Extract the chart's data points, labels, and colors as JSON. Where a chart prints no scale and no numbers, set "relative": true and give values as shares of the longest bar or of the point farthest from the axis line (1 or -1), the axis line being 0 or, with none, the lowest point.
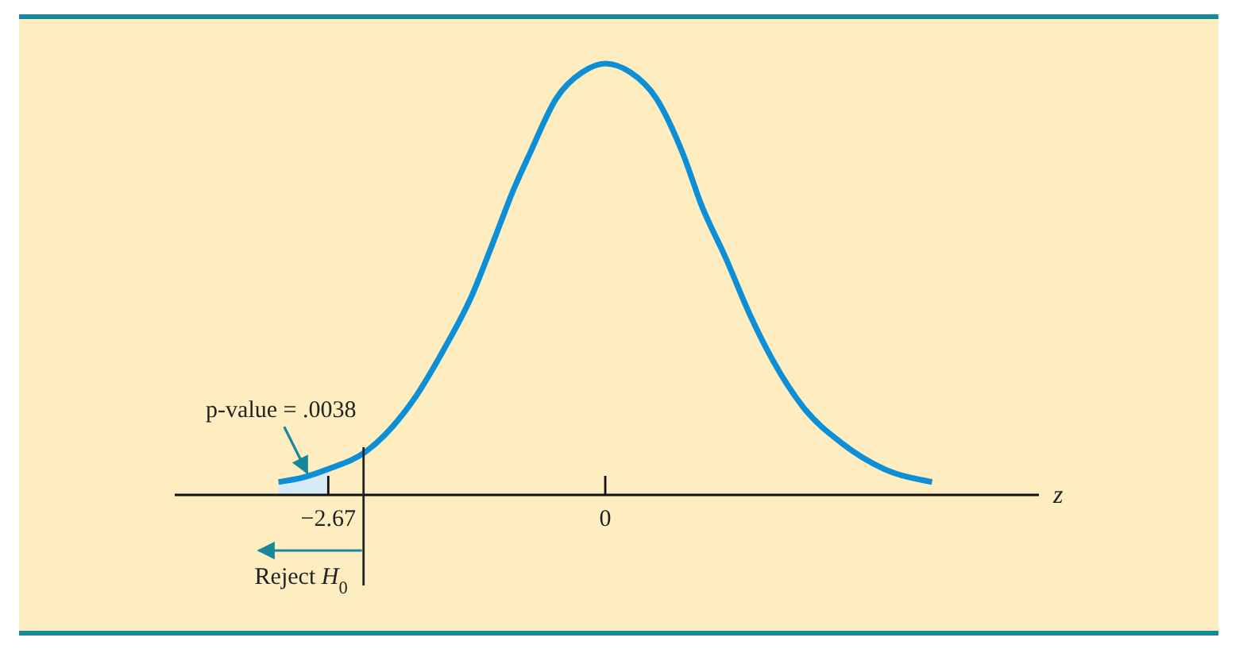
{
  "chart_data": {
    "type": "line",
    "relative": true,
    "xlabel": "z",
    "xlim": [
      -4.15,
      4.18
    ],
    "xticks": [
      -2.67,
      0
    ],
    "series": [
      {
        "type": "area",
        "color": "#d6eaf8",
        "x": [
          -3.15,
          -2.92,
          -2.67
        ],
        "values": [
          0.03,
          0.04,
          0.06
        ]
      },
      {
        "color": "#0c8fd6",
        "x": [
          -3.15,
          -2.92,
          -2.67,
          -2.31,
          -1.85,
          -1.55,
          -1.29,
          -1.09,
          -0.88,
          -0.73,
          -0.47,
          -0.22,
          0,
          0.24,
          0.49,
          0.75,
          0.93,
          1.16,
          1.39,
          1.62,
          1.92,
          2.28,
          2.69,
          3.15
        ],
        "values": [
          0.03,
          0.04,
          0.06,
          0.1,
          0.22,
          0.34,
          0.46,
          0.58,
          0.71,
          0.79,
          0.92,
          0.98,
          1,
          0.98,
          0.92,
          0.79,
          0.67,
          0.55,
          0.42,
          0.31,
          0.2,
          0.12,
          0.06,
          0.03
        ]
      }
    ],
    "ref_lines": [
      {
        "axis": "x",
        "value": -2.33,
        "label": "Reject H$_{0}$",
        "color": "#222222"
      }
    ],
    "annotations": [
      {
        "text": "p-value = .0038",
        "x": -2.85,
        "y": 0.04
      }
    ]
  }
}
